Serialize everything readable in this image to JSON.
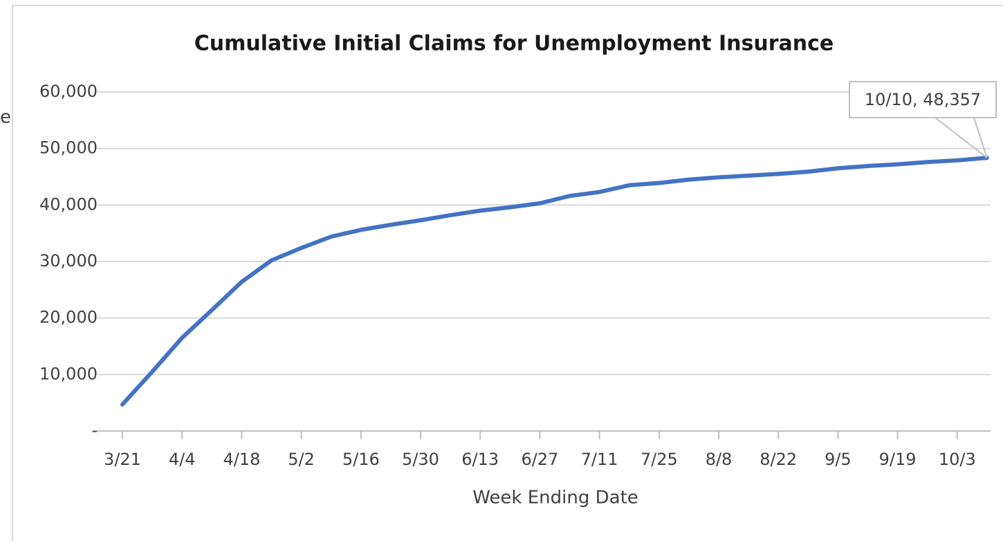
{
  "cropped_text": "e",
  "chart_data": {
    "type": "line",
    "title": "Cumulative Initial Claims for Unemployment Insurance",
    "x_label": "Week Ending Date",
    "categories": [
      "3/21",
      null,
      "4/4",
      null,
      "4/18",
      null,
      "5/2",
      null,
      "5/16",
      null,
      "5/30",
      null,
      "6/13",
      null,
      "6/27",
      null,
      "7/11",
      null,
      "7/25",
      null,
      "8/8",
      null,
      "8/22",
      null,
      "9/5",
      null,
      "9/19",
      null,
      "10/3",
      null
    ],
    "series": [
      {
        "name": "Cumulative Initial Claims",
        "color": "#4472c4",
        "values": [
          4700,
          10500,
          16500,
          21400,
          26400,
          30200,
          32400,
          34400,
          35600,
          36500,
          37300,
          38200,
          39000,
          39600,
          40300,
          41600,
          42300,
          43500,
          43900,
          44500,
          44900,
          45200,
          45500,
          45900,
          46500,
          46900,
          47200,
          47600,
          47900,
          48357
        ]
      }
    ],
    "annotation": {
      "text": "10/10,  48,357",
      "index": 29
    },
    "ylim": [
      0,
      60000
    ],
    "yticks": [
      {
        "value": 0,
        "label": "-"
      },
      {
        "value": 10000,
        "label": "10,000"
      },
      {
        "value": 20000,
        "label": "20,000"
      },
      {
        "value": 30000,
        "label": "30,000"
      },
      {
        "value": 40000,
        "label": "40,000"
      },
      {
        "value": 50000,
        "label": "50,000"
      },
      {
        "value": 60000,
        "label": "60,000"
      }
    ],
    "grid": true
  }
}
